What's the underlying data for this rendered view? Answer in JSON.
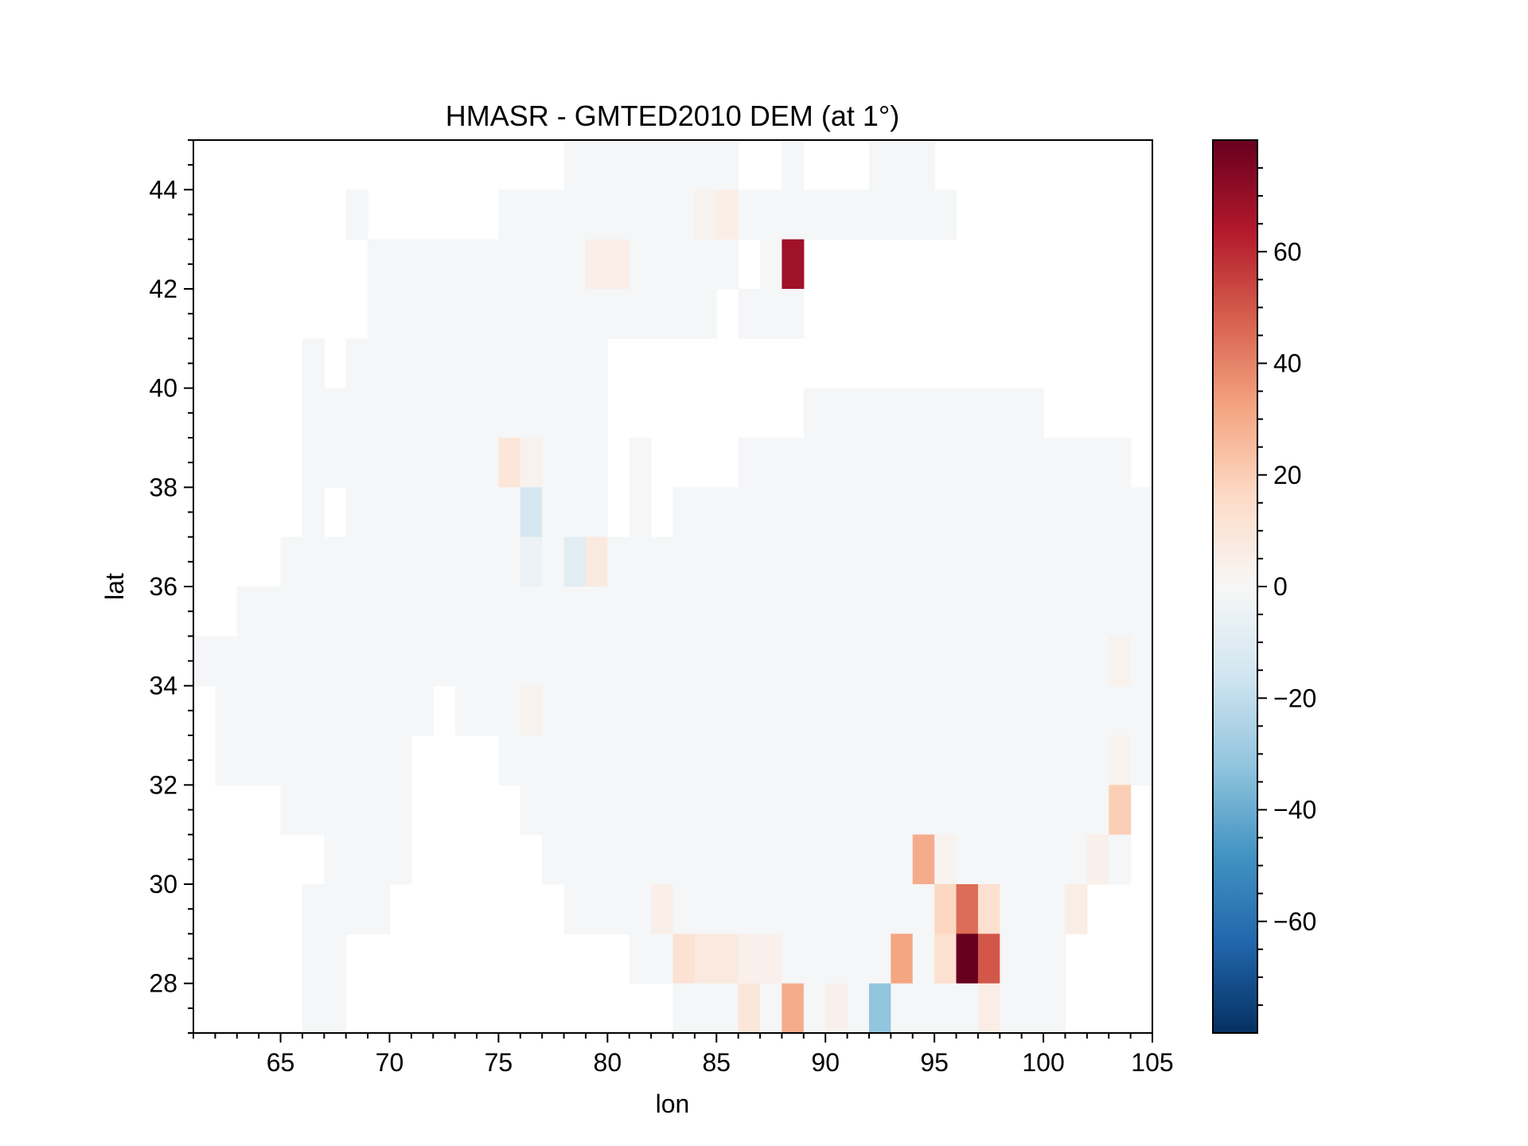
{
  "chart_data": {
    "type": "heatmap",
    "title": "HMASR - GMTED2010 DEM (at 1°)",
    "xlabel": "lon",
    "ylabel": "lat",
    "xlim": [
      61,
      105
    ],
    "ylim": [
      27,
      45
    ],
    "xticks": [
      65,
      70,
      75,
      80,
      85,
      90,
      95,
      100,
      105
    ],
    "xtick_labels": [
      "65",
      "70",
      "75",
      "80",
      "85",
      "90",
      "95",
      "100",
      "105"
    ],
    "yticks": [
      28,
      30,
      32,
      34,
      36,
      38,
      40,
      42,
      44
    ],
    "ytick_labels": [
      "28",
      "30",
      "32",
      "34",
      "36",
      "38",
      "40",
      "42",
      "44"
    ],
    "colorbar": {
      "colormap": "RdBu_r",
      "vmin": -80,
      "vmax": 80,
      "ticks": [
        -60,
        -40,
        -20,
        0,
        20,
        40,
        60
      ],
      "tick_labels": [
        "−60",
        "−40",
        "−20",
        "0",
        "20",
        "40",
        "60"
      ]
    },
    "cell_size_deg": 1,
    "background_value": -1,
    "coverage": [
      {
        "lat": 44,
        "lon_ranges": [
          [
            78,
            85
          ],
          [
            88,
            88
          ],
          [
            92,
            94
          ]
        ]
      },
      {
        "lat": 43,
        "lon_ranges": [
          [
            68,
            68
          ],
          [
            75,
            95
          ]
        ]
      },
      {
        "lat": 42,
        "lon_ranges": [
          [
            69,
            85
          ],
          [
            87,
            88
          ]
        ]
      },
      {
        "lat": 41,
        "lon_ranges": [
          [
            69,
            84
          ],
          [
            86,
            88
          ]
        ]
      },
      {
        "lat": 40,
        "lon_ranges": [
          [
            66,
            66
          ],
          [
            68,
            79
          ]
        ]
      },
      {
        "lat": 39,
        "lon_ranges": [
          [
            66,
            79
          ],
          [
            89,
            99
          ]
        ]
      },
      {
        "lat": 38,
        "lon_ranges": [
          [
            66,
            79
          ],
          [
            81,
            81
          ],
          [
            86,
            103
          ]
        ]
      },
      {
        "lat": 37,
        "lon_ranges": [
          [
            66,
            66
          ],
          [
            68,
            79
          ],
          [
            81,
            81
          ],
          [
            83,
            104
          ]
        ]
      },
      {
        "lat": 36,
        "lon_ranges": [
          [
            65,
            104
          ]
        ]
      },
      {
        "lat": 35,
        "lon_ranges": [
          [
            63,
            104
          ]
        ]
      },
      {
        "lat": 34,
        "lon_ranges": [
          [
            61,
            104
          ]
        ]
      },
      {
        "lat": 33,
        "lon_ranges": [
          [
            62,
            71
          ],
          [
            73,
            104
          ]
        ]
      },
      {
        "lat": 32,
        "lon_ranges": [
          [
            62,
            70
          ],
          [
            75,
            104
          ]
        ]
      },
      {
        "lat": 31,
        "lon_ranges": [
          [
            65,
            70
          ],
          [
            76,
            103
          ]
        ]
      },
      {
        "lat": 30,
        "lon_ranges": [
          [
            67,
            70
          ],
          [
            77,
            103
          ]
        ]
      },
      {
        "lat": 29,
        "lon_ranges": [
          [
            66,
            69
          ],
          [
            78,
            101
          ]
        ]
      },
      {
        "lat": 28,
        "lon_ranges": [
          [
            66,
            67
          ],
          [
            81,
            100
          ]
        ]
      },
      {
        "lat": 27,
        "lon_ranges": [
          [
            66,
            67
          ],
          [
            83,
            100
          ]
        ]
      }
    ],
    "anomalies": [
      {
        "lat": 42,
        "lon": 88,
        "value": 68
      },
      {
        "lat": 42,
        "lon": 79,
        "value": 5
      },
      {
        "lat": 42,
        "lon": 80,
        "value": 5
      },
      {
        "lat": 43,
        "lon": 84,
        "value": 3
      },
      {
        "lat": 43,
        "lon": 85,
        "value": 6
      },
      {
        "lat": 38,
        "lon": 75,
        "value": 10
      },
      {
        "lat": 38,
        "lon": 76,
        "value": 3
      },
      {
        "lat": 37,
        "lon": 76,
        "value": -14
      },
      {
        "lat": 36,
        "lon": 76,
        "value": -5
      },
      {
        "lat": 36,
        "lon": 78,
        "value": -9
      },
      {
        "lat": 36,
        "lon": 79,
        "value": 8
      },
      {
        "lat": 33,
        "lon": 76,
        "value": 3
      },
      {
        "lat": 34,
        "lon": 103,
        "value": 3
      },
      {
        "lat": 32,
        "lon": 103,
        "value": 3
      },
      {
        "lat": 31,
        "lon": 103,
        "value": 20
      },
      {
        "lat": 30,
        "lon": 94,
        "value": 30
      },
      {
        "lat": 30,
        "lon": 95,
        "value": 3
      },
      {
        "lat": 30,
        "lon": 102,
        "value": 4
      },
      {
        "lat": 29,
        "lon": 82,
        "value": 5
      },
      {
        "lat": 29,
        "lon": 95,
        "value": 17
      },
      {
        "lat": 29,
        "lon": 96,
        "value": 45
      },
      {
        "lat": 29,
        "lon": 97,
        "value": 13
      },
      {
        "lat": 29,
        "lon": 101,
        "value": 6
      },
      {
        "lat": 28,
        "lon": 83,
        "value": 12
      },
      {
        "lat": 28,
        "lon": 84,
        "value": 8
      },
      {
        "lat": 28,
        "lon": 85,
        "value": 8
      },
      {
        "lat": 28,
        "lon": 86,
        "value": 4
      },
      {
        "lat": 28,
        "lon": 87,
        "value": 4
      },
      {
        "lat": 28,
        "lon": 93,
        "value": 32
      },
      {
        "lat": 28,
        "lon": 95,
        "value": 13
      },
      {
        "lat": 28,
        "lon": 96,
        "value": 80
      },
      {
        "lat": 28,
        "lon": 97,
        "value": 50
      },
      {
        "lat": 27,
        "lon": 86,
        "value": 10
      },
      {
        "lat": 27,
        "lon": 88,
        "value": 30
      },
      {
        "lat": 27,
        "lon": 90,
        "value": 4
      },
      {
        "lat": 27,
        "lon": 92,
        "value": -32
      },
      {
        "lat": 27,
        "lon": 97,
        "value": 6
      }
    ]
  }
}
